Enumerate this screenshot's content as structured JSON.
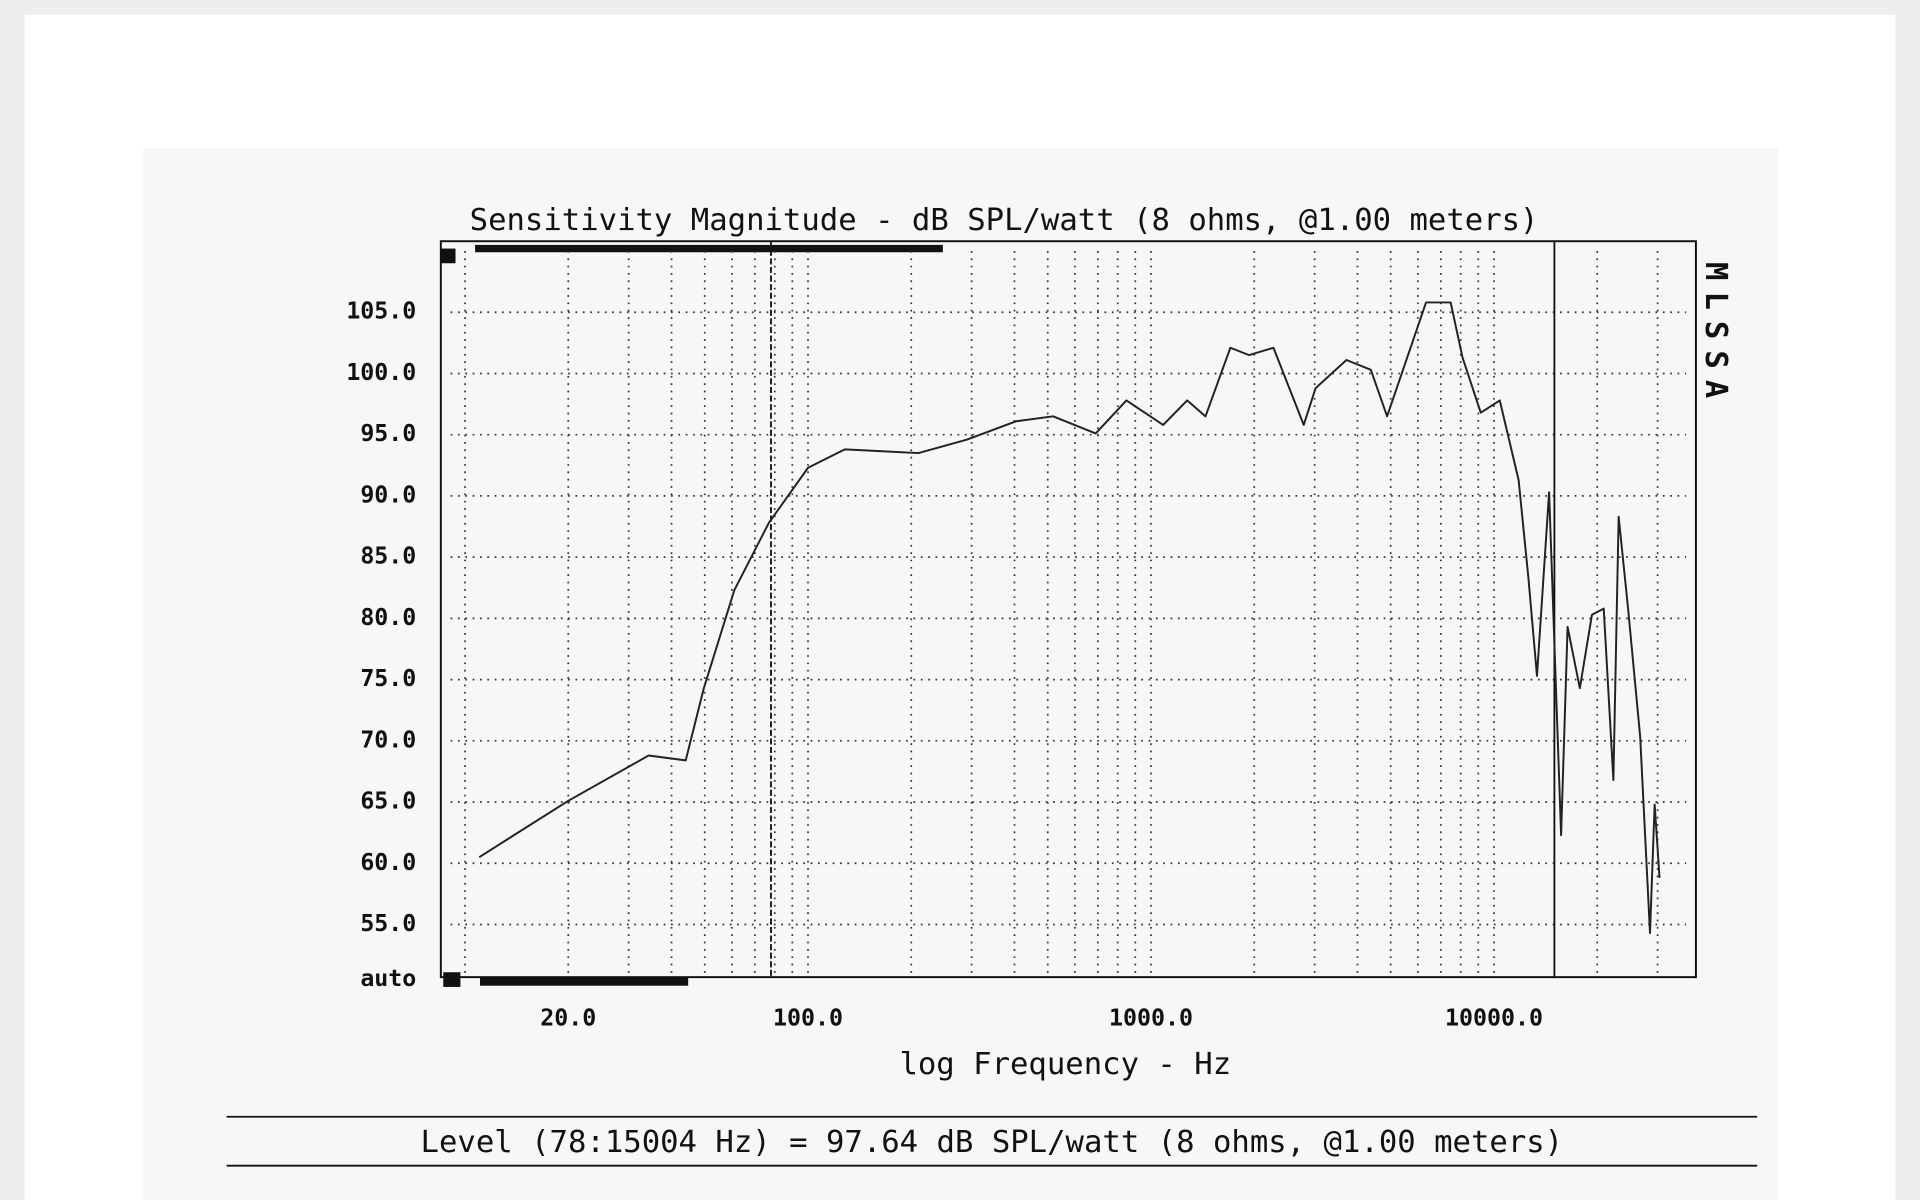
{
  "chart_data": {
    "type": "line",
    "title": "Sensitivity Magnitude - dB SPL/watt (8 ohms, @1.00 meters)",
    "x_label": "log Frequency - Hz",
    "side_label": "MLSSA",
    "footer": "Level (78:15004 Hz) = 97.64 dB SPL/watt (8 ohms, @1.00 meters)",
    "log_x": true,
    "grid": true,
    "color": "#222222",
    "markers": [
      78,
      15004
    ],
    "xlim": [
      8.5,
      38800
    ],
    "ylim": [
      50.5,
      110.8
    ],
    "xticks": [
      {
        "value": 20,
        "label": "20.0"
      },
      {
        "value": 100,
        "label": "100.0"
      },
      {
        "value": 1000,
        "label": "1000.0"
      },
      {
        "value": 10000,
        "label": "10000.0"
      }
    ],
    "x_gridlines": [
      10,
      20,
      30,
      40,
      50,
      60,
      70,
      80,
      90,
      100,
      200,
      300,
      400,
      500,
      600,
      700,
      800,
      900,
      1000,
      2000,
      3000,
      4000,
      5000,
      6000,
      7000,
      8000,
      9000,
      10000,
      20000,
      30000
    ],
    "yticks": [
      {
        "value": 50.5,
        "label": "auto"
      },
      {
        "value": 55,
        "label": "55.0"
      },
      {
        "value": 60,
        "label": "60.0"
      },
      {
        "value": 65,
        "label": "65.0"
      },
      {
        "value": 70,
        "label": "70.0"
      },
      {
        "value": 75,
        "label": "75.0"
      },
      {
        "value": 80,
        "label": "80.0"
      },
      {
        "value": 85,
        "label": "85.0"
      },
      {
        "value": 90,
        "label": "90.0"
      },
      {
        "value": 95,
        "label": "95.0"
      },
      {
        "value": 100,
        "label": "100.0"
      },
      {
        "value": 105,
        "label": "105.0"
      }
    ],
    "x": [
      11,
      20,
      34.3,
      44,
      49.7,
      61,
      76.9,
      100,
      128,
      210,
      291,
      405,
      518,
      690,
      848,
      1085,
      1275,
      1442,
      1704,
      1932,
      2276,
      2788,
      3020,
      3714,
      4375,
      4882,
      6340,
      7475,
      8100,
      9150,
      10400,
      11800,
      12600,
      13350,
      14480,
      15700,
      16400,
      17800,
      19300,
      20900,
      22300,
      23100,
      24600,
      26700,
      28500,
      29400,
      30400
    ],
    "values": [
      60.5,
      65.1,
      68.8,
      68.4,
      74.3,
      82.3,
      87.8,
      92.3,
      93.8,
      93.5,
      94.6,
      96.1,
      96.5,
      95.1,
      97.8,
      95.8,
      97.8,
      96.5,
      102.1,
      101.5,
      102.1,
      95.8,
      98.8,
      101.1,
      100.3,
      96.5,
      105.8,
      105.8,
      101.3,
      96.8,
      97.8,
      91.3,
      83.3,
      75.3,
      90.3,
      62.3,
      79.3,
      74.3,
      80.3,
      80.8,
      66.8,
      88.3,
      80.8,
      70.3,
      54.3,
      64.8,
      58.8
    ]
  }
}
